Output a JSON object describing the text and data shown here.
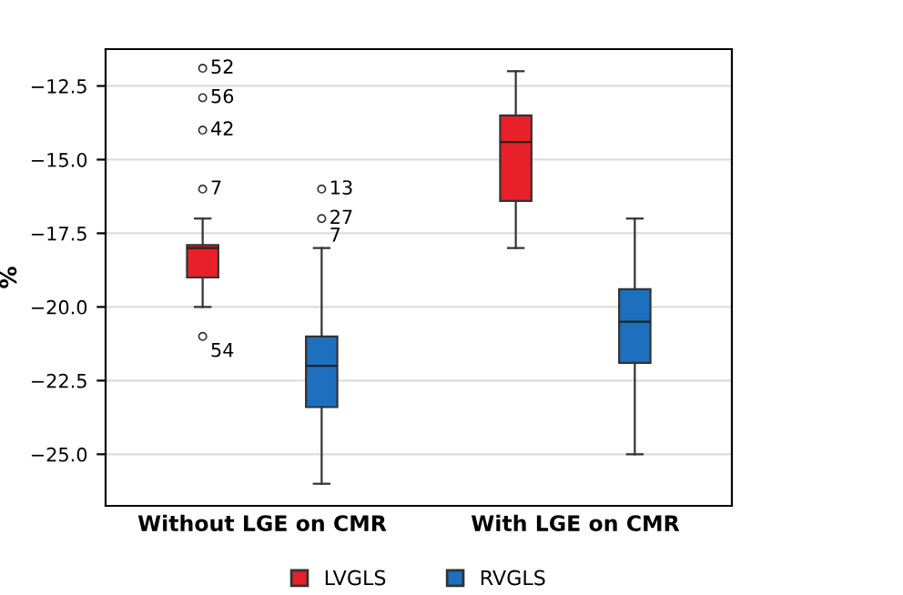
{
  "chart_data": {
    "type": "box",
    "ylabel": "%",
    "categories": [
      "Without LGE on CMR",
      "With LGE on CMR"
    ],
    "series": [
      {
        "name": "LVGLS",
        "color": "#e8202a",
        "boxes": [
          {
            "low": -20,
            "q1": -19,
            "median": -18,
            "q3": -17.9,
            "high": -17,
            "outliers": [
              -11.9,
              -12.9,
              -14,
              -16,
              -21
            ]
          },
          {
            "low": -18,
            "q1": -16.4,
            "median": -14.4,
            "q3": -13.5,
            "high": -12
          }
        ]
      },
      {
        "name": "RVGLS",
        "color": "#1f6fbf",
        "boxes": [
          {
            "low": -26,
            "q1": -23.4,
            "median": -22,
            "q3": -21,
            "high": -18,
            "outliers": [
              -16,
              -17
            ]
          },
          {
            "low": -25,
            "q1": -21.9,
            "median": -20.5,
            "q3": -19.4,
            "high": -17
          }
        ]
      }
    ],
    "annotations": [
      "52",
      "56",
      "42",
      "7",
      "54",
      "13",
      "27",
      "7"
    ],
    "ylim": [
      -26.75,
      -11.25
    ],
    "yticks": [
      {
        "value": -12.5,
        "label": "−12.5"
      },
      {
        "value": -15,
        "label": "−15.0"
      },
      {
        "value": -17.5,
        "label": "−17.5"
      },
      {
        "value": -20,
        "label": "−20.0"
      },
      {
        "value": -22.5,
        "label": "−22.5"
      },
      {
        "value": -25,
        "label": "−25.0"
      }
    ],
    "grid": "y",
    "legend": "bottom"
  }
}
